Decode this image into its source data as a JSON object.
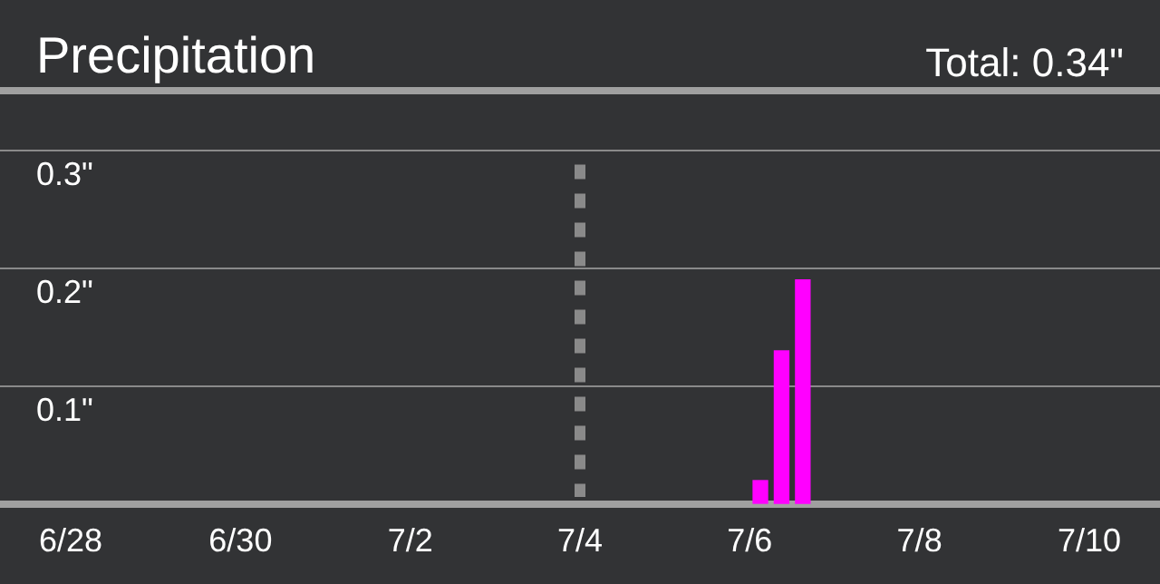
{
  "chart_data": {
    "type": "bar",
    "title": "Precipitation",
    "annotations": [
      "Total: 0.34\""
    ],
    "x": [
      "--07-06T03:00",
      "--07-06T09:00",
      "--07-06T15:00"
    ],
    "values": [
      0.02,
      0.13,
      0.19
    ],
    "color": "#ff00ff",
    "xlim": [
      "--06-27T04:00",
      "--07-10T20:00"
    ],
    "xticks": [
      {
        "value": "--06-28",
        "label": "6/28"
      },
      {
        "value": "--06-30",
        "label": "6/30"
      },
      {
        "value": "--07-02",
        "label": "7/2"
      },
      {
        "value": "--07-04",
        "label": "7/4"
      },
      {
        "value": "--07-06",
        "label": "7/6"
      },
      {
        "value": "--07-08",
        "label": "7/8"
      },
      {
        "value": "--07-10",
        "label": "7/10"
      }
    ],
    "ylim": [
      0,
      0.3
    ],
    "yticks": [
      {
        "value": 0,
        "label": null
      },
      {
        "value": 0.1,
        "label": "0.1\""
      },
      {
        "value": 0.2,
        "label": "0.2\""
      },
      {
        "value": 0.3,
        "label": "0.3\""
      }
    ],
    "grid": "y",
    "legend": false,
    "ref_lines": [
      {
        "axis": "x",
        "value": "--07-04",
        "label": null,
        "color": "#8a8a8a",
        "line_style": "dashed"
      }
    ]
  }
}
